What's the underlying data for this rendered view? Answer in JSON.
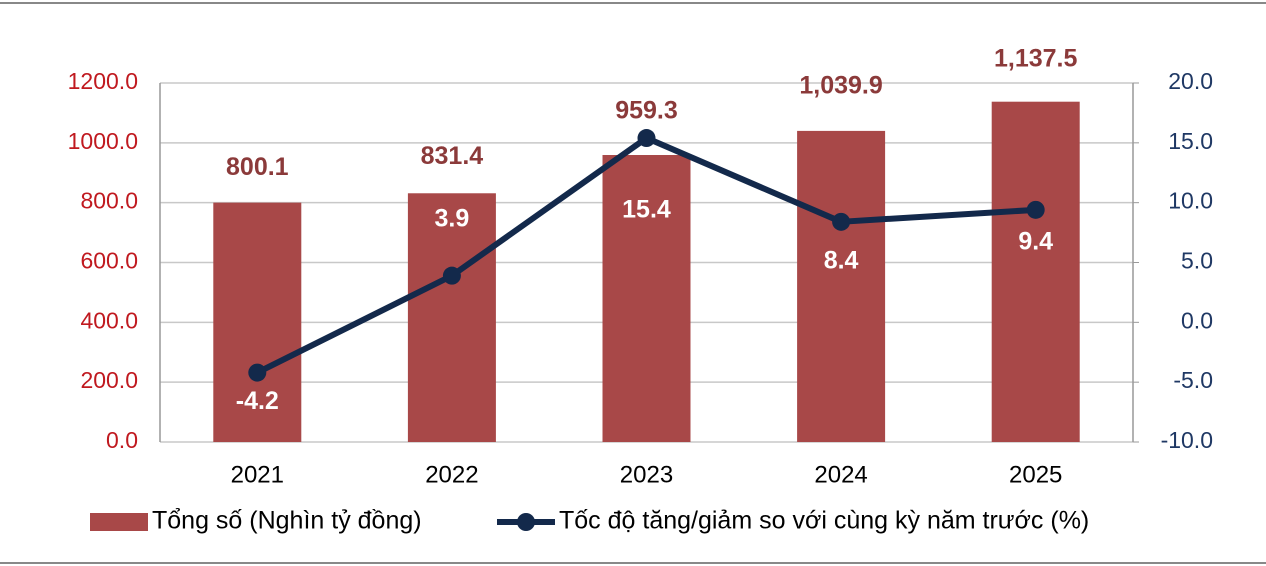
{
  "chart_data": {
    "type": "combo",
    "categories": [
      "2021",
      "2022",
      "2023",
      "2024",
      "2025"
    ],
    "series": [
      {
        "name": "Tổng số (Nghìn tỷ đồng)",
        "type": "bar",
        "color": "#a84848",
        "values": [
          800.1,
          831.4,
          959.3,
          1039.9,
          1137.5
        ],
        "value_labels": [
          "800.1",
          "831.4",
          "959.3",
          "1,039.9",
          "1,137.5"
        ]
      },
      {
        "name": "Tốc độ tăng/giảm so với cùng kỳ năm trước (%)",
        "type": "line",
        "color": "#13294b",
        "axis": "y2",
        "values": [
          -4.2,
          3.9,
          15.4,
          8.4,
          9.4
        ]
      }
    ],
    "ylim": [
      0,
      1200
    ],
    "yticks": [
      {
        "value": 0,
        "label": "0.0"
      },
      {
        "value": 200,
        "label": "200.0"
      },
      {
        "value": 400,
        "label": "400.0"
      },
      {
        "value": 600,
        "label": "600.0"
      },
      {
        "value": 800,
        "label": "800.0"
      },
      {
        "value": 1000,
        "label": "1000.0"
      },
      {
        "value": 1200,
        "label": "1200.0"
      }
    ],
    "y2lim": [
      -10,
      20
    ],
    "y2ticks": [
      {
        "value": -10,
        "label": "-10.0"
      },
      {
        "value": -5,
        "label": "-5.0"
      },
      {
        "value": 0,
        "label": "0.0"
      },
      {
        "value": 5,
        "label": "5.0"
      },
      {
        "value": 10,
        "label": "10.0"
      },
      {
        "value": 15,
        "label": "15.0"
      },
      {
        "value": 20,
        "label": "20.0"
      }
    ],
    "grid": true,
    "legend": "bottom"
  }
}
